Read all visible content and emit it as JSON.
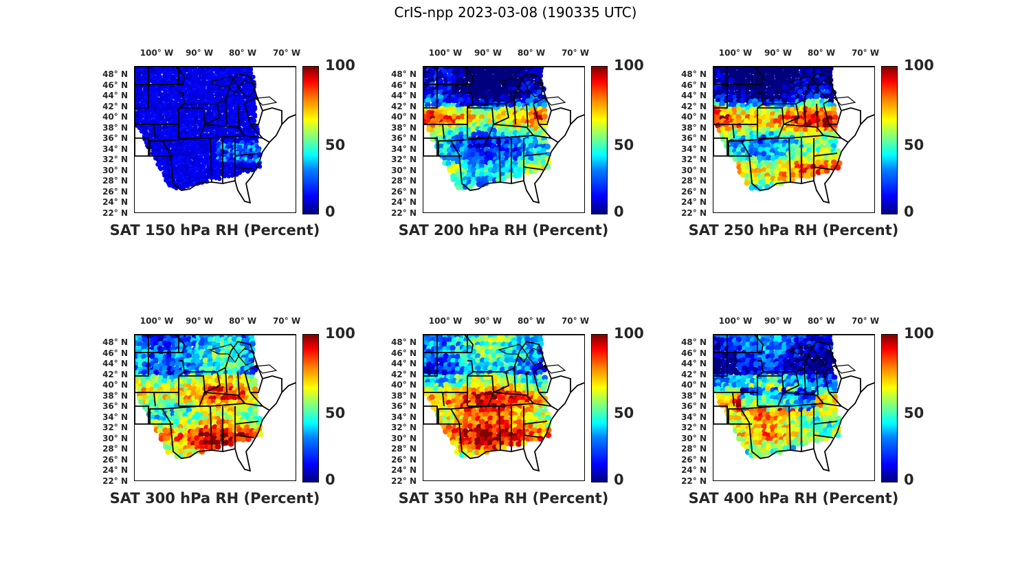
{
  "title": "CrIS-npp 2023-03-08 (190335 UTC)",
  "chart_data": [
    {
      "type": "heatmap",
      "title": "SAT 150 hPa RH (Percent)",
      "pressure_hPa": 150,
      "variable": "RH",
      "units": "Percent",
      "colorbar_ticks": [
        "0",
        "50",
        "100"
      ],
      "clim": [
        0,
        100
      ],
      "lon_ticks": [
        "100° W",
        "90° W",
        "80° W",
        "70° W"
      ],
      "lat_ticks": [
        "22° N",
        "24° N",
        "26° N",
        "28° N",
        "30° N",
        "32° N",
        "34° N",
        "36° N",
        "38° N",
        "40° N",
        "42° N",
        "44° N",
        "46° N",
        "48° N"
      ],
      "dominant_rh": 8
    },
    {
      "type": "heatmap",
      "title": "SAT 200 hPa RH (Percent)",
      "pressure_hPa": 200,
      "variable": "RH",
      "units": "Percent",
      "colorbar_ticks": [
        "0",
        "50",
        "100"
      ],
      "clim": [
        0,
        100
      ],
      "lon_ticks": [
        "100° W",
        "90° W",
        "80° W",
        "70° W"
      ],
      "lat_ticks": [
        "22° N",
        "24° N",
        "26° N",
        "28° N",
        "30° N",
        "32° N",
        "34° N",
        "36° N",
        "38° N",
        "40° N",
        "42° N",
        "44° N",
        "46° N",
        "48° N"
      ],
      "dominant_rh": 30
    },
    {
      "type": "heatmap",
      "title": "SAT 250 hPa RH (Percent)",
      "pressure_hPa": 250,
      "variable": "RH",
      "units": "Percent",
      "colorbar_ticks": [
        "0",
        "50",
        "100"
      ],
      "clim": [
        0,
        100
      ],
      "lon_ticks": [
        "100° W",
        "90° W",
        "80° W",
        "70° W"
      ],
      "lat_ticks": [
        "22° N",
        "24° N",
        "26° N",
        "28° N",
        "30° N",
        "32° N",
        "34° N",
        "36° N",
        "38° N",
        "40° N",
        "42° N",
        "44° N",
        "46° N",
        "48° N"
      ],
      "dominant_rh": 45
    },
    {
      "type": "heatmap",
      "title": "SAT 300 hPa RH (Percent)",
      "pressure_hPa": 300,
      "variable": "RH",
      "units": "Percent",
      "colorbar_ticks": [
        "0",
        "50",
        "100"
      ],
      "clim": [
        0,
        100
      ],
      "lon_ticks": [
        "100° W",
        "90° W",
        "80° W",
        "70° W"
      ],
      "lat_ticks": [
        "22° N",
        "24° N",
        "26° N",
        "28° N",
        "30° N",
        "32° N",
        "34° N",
        "36° N",
        "38° N",
        "40° N",
        "42° N",
        "44° N",
        "46° N",
        "48° N"
      ],
      "dominant_rh": 50
    },
    {
      "type": "heatmap",
      "title": "SAT 350 hPa RH (Percent)",
      "pressure_hPa": 350,
      "variable": "RH",
      "units": "Percent",
      "colorbar_ticks": [
        "0",
        "50",
        "100"
      ],
      "clim": [
        0,
        100
      ],
      "lon_ticks": [
        "100° W",
        "90° W",
        "80° W",
        "70° W"
      ],
      "lat_ticks": [
        "22° N",
        "24° N",
        "26° N",
        "28° N",
        "30° N",
        "32° N",
        "34° N",
        "36° N",
        "38° N",
        "40° N",
        "42° N",
        "44° N",
        "46° N",
        "48° N"
      ],
      "dominant_rh": 55
    },
    {
      "type": "heatmap",
      "title": "SAT 400 hPa RH (Percent)",
      "pressure_hPa": 400,
      "variable": "RH",
      "units": "Percent",
      "colorbar_ticks": [
        "0",
        "50",
        "100"
      ],
      "clim": [
        0,
        100
      ],
      "lon_ticks": [
        "100° W",
        "90° W",
        "80° W",
        "70° W"
      ],
      "lat_ticks": [
        "22° N",
        "24° N",
        "26° N",
        "28° N",
        "30° N",
        "32° N",
        "34° N",
        "36° N",
        "38° N",
        "40° N",
        "42° N",
        "44° N",
        "46° N",
        "48° N"
      ],
      "dominant_rh": 40
    }
  ]
}
